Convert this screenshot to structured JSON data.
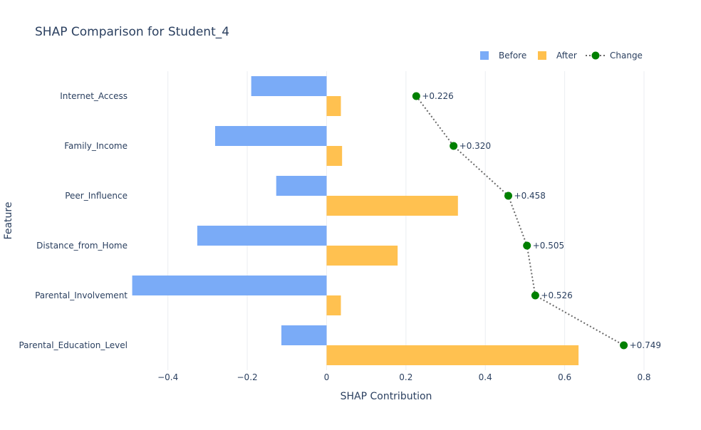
{
  "chart_data": {
    "type": "bar",
    "orientation": "horizontal",
    "title": "SHAP Comparison for Student_4",
    "xlabel": "SHAP Contribution",
    "ylabel": "Feature",
    "xlim": [
      -0.5,
      0.8
    ],
    "xticks": [
      -0.4,
      -0.2,
      0,
      0.2,
      0.4,
      0.6,
      0.8
    ],
    "xtick_labels": [
      "−0.4",
      "−0.2",
      "0",
      "0.2",
      "0.4",
      "0.6",
      "0.8"
    ],
    "grid": true,
    "legend_position": "top-right",
    "categories": [
      "Internet_Access",
      "Family_Income",
      "Peer_Influence",
      "Distance_from_Home",
      "Parental_Involvement",
      "Parental_Education_Level"
    ],
    "series": [
      {
        "name": "Before",
        "kind": "bar",
        "color": "#7aabf7",
        "values": [
          -0.19,
          -0.281,
          -0.127,
          -0.326,
          -0.49,
          -0.114
        ]
      },
      {
        "name": "After",
        "kind": "bar",
        "color": "#ffc04d",
        "values": [
          0.036,
          0.039,
          0.331,
          0.179,
          0.036,
          0.635
        ]
      },
      {
        "name": "Change",
        "kind": "line+markers",
        "color": "#008000",
        "values": [
          0.226,
          0.32,
          0.458,
          0.505,
          0.526,
          0.749
        ],
        "labels": [
          "+0.226",
          "+0.320",
          "+0.458",
          "+0.505",
          "+0.526",
          "+0.749"
        ]
      }
    ]
  },
  "colors": {
    "before": "#7aabf7",
    "after": "#ffc04d",
    "change_marker": "#008000",
    "change_line": "#696969",
    "grid": "#ebedf1",
    "text": "#2a3f5f"
  }
}
